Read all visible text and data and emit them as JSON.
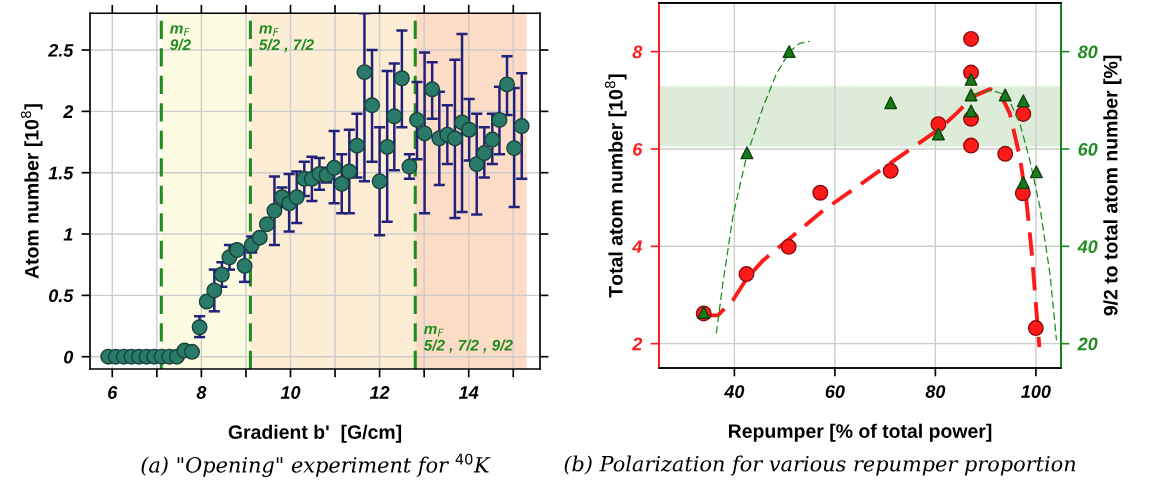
{
  "chart_data": [
    {
      "type": "scatter",
      "xlabel": "Gradient b'  [G/cm]",
      "ylabel": "Atom number [10$^{8}$]",
      "xlim": [
        5.5,
        15.6
      ],
      "ylim": [
        -0.1,
        2.8
      ],
      "xticks": [
        {
          "value": 6,
          "label": "6"
        },
        {
          "value": 7,
          "label": null
        },
        {
          "value": 8,
          "label": "8"
        },
        {
          "value": 9,
          "label": null
        },
        {
          "value": 10,
          "label": "10"
        },
        {
          "value": 11,
          "label": null
        },
        {
          "value": 12,
          "label": "12"
        },
        {
          "value": 13,
          "label": null
        },
        {
          "value": 14,
          "label": "14"
        },
        {
          "value": 15,
          "label": null
        }
      ],
      "yticks": [
        0,
        0.5,
        1,
        1.5,
        2,
        2.5
      ],
      "grid": true,
      "marker": "circle",
      "series": [
        {
          "color": "#2a7a6a",
          "x": [
            5.91,
            6.08,
            6.26,
            6.43,
            6.6,
            6.77,
            6.94,
            7.11,
            7.28,
            7.45,
            7.62,
            7.79,
            7.96,
            8.12,
            8.29,
            8.46,
            8.63,
            8.8,
            8.97,
            9.13,
            9.31,
            9.47,
            9.64,
            9.81,
            9.97,
            10.14,
            10.31,
            10.48,
            10.65,
            10.81,
            10.98,
            11.15,
            11.32,
            11.49,
            11.66,
            11.83,
            12.0,
            12.17,
            12.33,
            12.5,
            12.67,
            12.84,
            13.01,
            13.18,
            13.34,
            13.52,
            13.69,
            13.85,
            14.01,
            14.18,
            14.35,
            14.53,
            14.69,
            14.86,
            15.02,
            15.19
          ],
          "values": [
            0,
            0,
            0,
            0,
            0,
            0,
            0,
            0,
            0,
            0,
            0.05,
            0.04,
            0.24,
            0.45,
            0.54,
            0.67,
            0.81,
            0.87,
            0.74,
            0.91,
            0.97,
            1.08,
            1.19,
            1.3,
            1.25,
            1.3,
            1.45,
            1.45,
            1.49,
            1.48,
            1.54,
            1.41,
            1.51,
            1.72,
            2.32,
            2.05,
            1.43,
            1.71,
            1.96,
            2.27,
            1.55,
            1.93,
            1.82,
            2.18,
            1.78,
            1.81,
            1.78,
            1.91,
            1.85,
            1.57,
            1.66,
            1.77,
            1.93,
            2.22,
            1.7,
            1.88
          ],
          "errors": [
            null,
            null,
            null,
            null,
            null,
            null,
            null,
            null,
            null,
            null,
            null,
            null,
            [
              0.16,
              0.33
            ],
            null,
            [
              0.37,
              0.71
            ],
            [
              0.57,
              0.77
            ],
            [
              0.71,
              0.91
            ],
            null,
            [
              0.61,
              0.87
            ],
            [
              0.85,
              0.98
            ],
            null,
            null,
            [
              0.91,
              1.47
            ],
            [
              1.22,
              1.38
            ],
            [
              1.02,
              1.49
            ],
            [
              1.09,
              1.51
            ],
            [
              1.31,
              1.59
            ],
            [
              1.27,
              1.63
            ],
            [
              1.36,
              1.62
            ],
            [
              1.42,
              1.54
            ],
            [
              1.25,
              1.84
            ],
            [
              1.17,
              1.65
            ],
            [
              1.17,
              1.85
            ],
            [
              1.46,
              1.98
            ],
            [
              1.43,
              2.8
            ],
            [
              1.59,
              2.5
            ],
            [
              0.99,
              1.87
            ],
            [
              1.1,
              2.33
            ],
            [
              1.52,
              2.39
            ],
            [
              1.87,
              2.66
            ],
            [
              1.45,
              1.65
            ],
            [
              1.61,
              2.24
            ],
            [
              1.17,
              2.48
            ],
            [
              1.94,
              2.4
            ],
            [
              1.4,
              2.16
            ],
            [
              1.57,
              2.05
            ],
            [
              1.13,
              2.42
            ],
            [
              1.18,
              2.63
            ],
            [
              1.6,
              2.1
            ],
            [
              1.16,
              1.98
            ],
            [
              1.46,
              1.87
            ],
            [
              1.57,
              1.98
            ],
            [
              1.65,
              2.2
            ],
            [
              1.97,
              2.45
            ],
            [
              1.22,
              2.19
            ],
            [
              1.45,
              2.31
            ]
          ]
        }
      ],
      "bands": [
        {
          "axis": "x",
          "from": 7.1,
          "to": 9.1,
          "color": "#fefbe3"
        },
        {
          "axis": "x",
          "from": 9.1,
          "to": 12.8,
          "color": "#fdedd5"
        },
        {
          "axis": "x",
          "from": 12.8,
          "to": 15.3,
          "color": "#fcdcc6"
        }
      ],
      "ref_lines": [
        {
          "axis": "x",
          "value": 7.1,
          "color": "#1e8c1e",
          "line_style": "dashed"
        },
        {
          "axis": "x",
          "value": 9.1,
          "color": "#1e8c1e",
          "line_style": "dashed"
        },
        {
          "axis": "x",
          "value": 12.8,
          "color": "#1e8c1e",
          "line_style": "dashed"
        }
      ],
      "annotations": [
        {
          "text": "m$_{F}$\n9/2",
          "x": 7.1,
          "y": 2.6
        },
        {
          "text": "m$_{F}$\n5/2 , 7/2",
          "x": 9.1,
          "y": 2.6
        },
        {
          "text": "m$_{F}$\n5/2 , 7/2 , 9/2",
          "x": 12.8,
          "y": 0.15
        },
        "(a) \"Opening\" experiment for $^{40}$K"
      ]
    },
    {
      "type": "scatter",
      "xlabel": "Repumper [% of total power]",
      "ylabel": "Total atom number [10$^{8}$]",
      "y2label": "9/2 to total atom number [%]",
      "xlim": [
        25,
        105
      ],
      "ylim": [
        1.5,
        9
      ],
      "y2lim": [
        15,
        90
      ],
      "xticks": [
        40,
        60,
        80,
        100
      ],
      "yticks": [
        2,
        4,
        6,
        8
      ],
      "y2ticks": [
        20,
        40,
        60,
        80
      ],
      "grid": true,
      "series": [
        {
          "type": "line",
          "axis": "y",
          "color": "#ff1a1a",
          "line_style": "dashed",
          "x": [
            33.9,
            36.7,
            39.7,
            42.4,
            45.7,
            51.0,
            57.7,
            64.4,
            70.9,
            77.6,
            80.9,
            84.2,
            87.5,
            90.9,
            92.9,
            94.8,
            96.8,
            98.1,
            99.2,
            100.2,
            100.7
          ],
          "values": [
            2.58,
            2.58,
            2.89,
            3.33,
            3.71,
            4.16,
            4.74,
            5.22,
            5.7,
            6.18,
            6.42,
            6.73,
            7.08,
            7.23,
            7.14,
            6.73,
            5.84,
            4.95,
            3.85,
            2.55,
            1.93
          ]
        },
        {
          "type": "line",
          "axis": "y2",
          "color": "#1e8c1e",
          "line_style": "dashed",
          "x": [
            36.4,
            37.7,
            39.7,
            42.4,
            45.7,
            48.4,
            51.0,
            53.0,
            55.0
          ],
          "values": [
            22.1,
            32.3,
            46.1,
            58.4,
            68.6,
            75.5,
            80.0,
            81.7,
            82.1
          ]
        },
        {
          "type": "line",
          "axis": "y2",
          "color": "#1e8c1e",
          "line_style": "dashed",
          "x": [
            87.5,
            90.9,
            94.2,
            96.8,
            98.8,
            100.8,
            102.8,
            104.1
          ],
          "values": [
            71.1,
            72.1,
            71.1,
            65.3,
            57.7,
            48.1,
            34.4,
            20.7
          ]
        },
        {
          "type": "scatter",
          "axis": "y",
          "color": "#ff1a1a",
          "marker": "circle",
          "x": [
            33.9,
            42.4,
            50.8,
            57.1,
            71.1,
            80.6,
            87.1,
            87.1,
            87.1,
            87.1,
            93.9,
            97.5,
            97.4,
            100.0
          ],
          "values": [
            2.62,
            3.43,
            3.99,
            5.1,
            5.55,
            6.51,
            8.26,
            7.57,
            6.62,
            6.07,
            5.9,
            6.72,
            5.09,
            2.32
          ]
        },
        {
          "type": "scatter",
          "axis": "y2",
          "color": "#1a7a1a",
          "marker": "triangle",
          "x": [
            33.9,
            42.5,
            50.9,
            71.1,
            80.6,
            87.1,
            87.1,
            87.1,
            93.9,
            97.5,
            97.5,
            100.1
          ],
          "values": [
            26.4,
            59.2,
            80.0,
            69.5,
            63.1,
            74.3,
            71.1,
            67.8,
            71.1,
            69.9,
            53.1,
            55.3
          ]
        }
      ],
      "bands": [
        {
          "axis": "y2",
          "from": 60.5,
          "to": 72.9,
          "color": "#dcecd9"
        }
      ],
      "annotations": [
        "(b) Polarization for various repumper proportion"
      ]
    }
  ]
}
